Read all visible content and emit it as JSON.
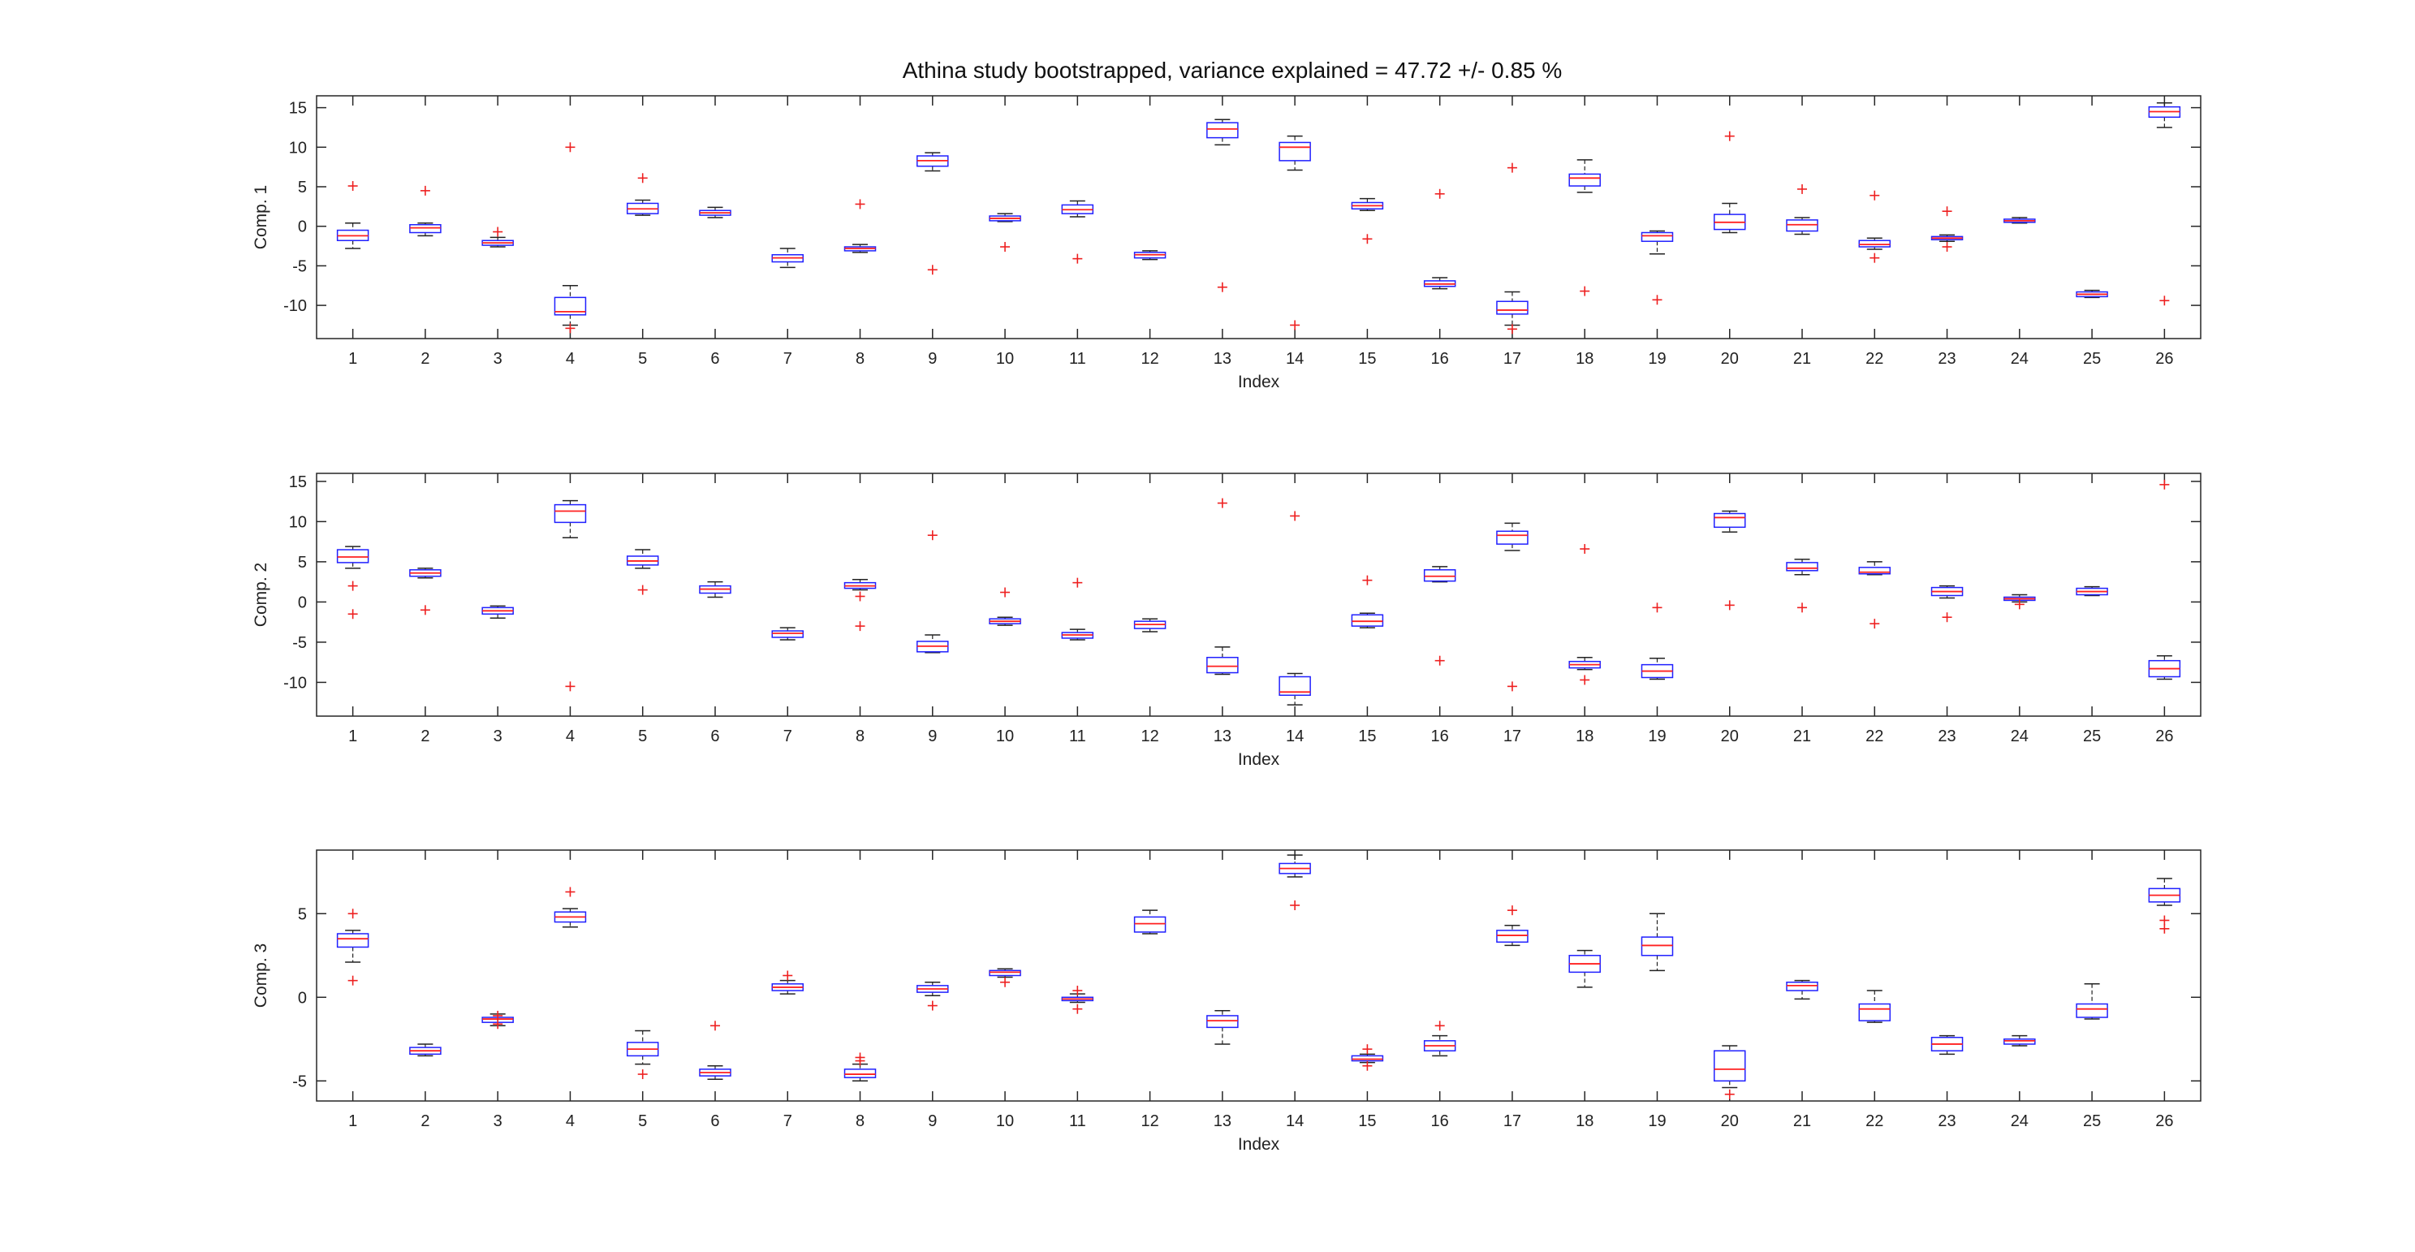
{
  "figure": {
    "title": "Athina study bootstrapped, variance explained = 47.72 +/- 0.85 %",
    "colors": {
      "box": "#2020ff",
      "median": "#ff2020",
      "outlier": "#ee2020",
      "whisker": "#222222",
      "axis": "#262626"
    }
  },
  "chart_data": [
    {
      "type": "box",
      "ylabel": "Comp. 1",
      "xlabel": "Index",
      "ylim": [
        -14.2,
        16.5
      ],
      "yticks": [
        -10,
        -5,
        0,
        5,
        10,
        15
      ],
      "categories": [
        "1",
        "2",
        "3",
        "4",
        "5",
        "6",
        "7",
        "8",
        "9",
        "10",
        "11",
        "12",
        "13",
        "14",
        "15",
        "16",
        "17",
        "18",
        "19",
        "20",
        "21",
        "22",
        "23",
        "24",
        "25",
        "26"
      ],
      "boxes": [
        {
          "lw": -2.8,
          "q1": -1.8,
          "med": -1.2,
          "q3": -0.5,
          "uw": 0.4,
          "outliers": [
            5.1
          ]
        },
        {
          "lw": -1.2,
          "q1": -0.8,
          "med": -0.2,
          "q3": 0.2,
          "uw": 0.4,
          "outliers": [
            4.5
          ]
        },
        {
          "lw": -2.6,
          "q1": -2.4,
          "med": -2.1,
          "q3": -1.8,
          "uw": -1.4,
          "outliers": [
            -0.7
          ]
        },
        {
          "lw": -12.5,
          "q1": -11.2,
          "med": -10.8,
          "q3": -9.0,
          "uw": -7.5,
          "outliers": [
            10.0,
            -12.9
          ]
        },
        {
          "lw": 1.4,
          "q1": 1.6,
          "med": 2.2,
          "q3": 2.9,
          "uw": 3.3,
          "outliers": [
            6.1
          ]
        },
        {
          "lw": 1.1,
          "q1": 1.4,
          "med": 1.7,
          "q3": 2.0,
          "uw": 2.4,
          "outliers": []
        },
        {
          "lw": -5.2,
          "q1": -4.5,
          "med": -4.0,
          "q3": -3.6,
          "uw": -2.8,
          "outliers": []
        },
        {
          "lw": -3.3,
          "q1": -3.1,
          "med": -2.8,
          "q3": -2.6,
          "uw": -2.3,
          "outliers": [
            2.8
          ]
        },
        {
          "lw": 7.0,
          "q1": 7.6,
          "med": 8.3,
          "q3": 8.9,
          "uw": 9.3,
          "outliers": [
            -5.5
          ]
        },
        {
          "lw": 0.6,
          "q1": 0.7,
          "med": 1.0,
          "q3": 1.3,
          "uw": 1.6,
          "outliers": [
            -2.6
          ]
        },
        {
          "lw": 1.2,
          "q1": 1.6,
          "med": 2.1,
          "q3": 2.7,
          "uw": 3.2,
          "outliers": [
            -4.1
          ]
        },
        {
          "lw": -4.2,
          "q1": -4.0,
          "med": -3.6,
          "q3": -3.3,
          "uw": -3.1,
          "outliers": []
        },
        {
          "lw": 10.3,
          "q1": 11.2,
          "med": 12.3,
          "q3": 13.1,
          "uw": 13.5,
          "outliers": [
            -7.7
          ]
        },
        {
          "lw": 7.1,
          "q1": 8.3,
          "med": 10.0,
          "q3": 10.6,
          "uw": 11.4,
          "outliers": [
            -12.5
          ]
        },
        {
          "lw": 2.0,
          "q1": 2.2,
          "med": 2.6,
          "q3": 3.0,
          "uw": 3.5,
          "outliers": [
            -1.6
          ]
        },
        {
          "lw": -7.9,
          "q1": -7.6,
          "med": -7.3,
          "q3": -6.9,
          "uw": -6.5,
          "outliers": [
            4.1
          ]
        },
        {
          "lw": -12.5,
          "q1": -11.1,
          "med": -10.6,
          "q3": -9.5,
          "uw": -8.3,
          "outliers": [
            7.4,
            -13.0
          ]
        },
        {
          "lw": 4.3,
          "q1": 5.1,
          "med": 6.1,
          "q3": 6.6,
          "uw": 8.4,
          "outliers": [
            -8.2
          ]
        },
        {
          "lw": -3.5,
          "q1": -1.9,
          "med": -1.2,
          "q3": -0.8,
          "uw": -0.6,
          "outliers": [
            -9.3
          ]
        },
        {
          "lw": -0.8,
          "q1": -0.4,
          "med": 0.5,
          "q3": 1.5,
          "uw": 2.9,
          "outliers": [
            11.4
          ]
        },
        {
          "lw": -1.0,
          "q1": -0.6,
          "med": 0.2,
          "q3": 0.8,
          "uw": 1.1,
          "outliers": [
            4.7
          ]
        },
        {
          "lw": -2.9,
          "q1": -2.6,
          "med": -2.3,
          "q3": -1.8,
          "uw": -1.5,
          "outliers": [
            3.9,
            -4.0
          ]
        },
        {
          "lw": -1.9,
          "q1": -1.7,
          "med": -1.5,
          "q3": -1.3,
          "uw": -1.1,
          "outliers": [
            1.9,
            -2.6
          ]
        },
        {
          "lw": 0.4,
          "q1": 0.5,
          "med": 0.7,
          "q3": 0.9,
          "uw": 1.1,
          "outliers": []
        },
        {
          "lw": -9.0,
          "q1": -8.9,
          "med": -8.6,
          "q3": -8.3,
          "uw": -8.1,
          "outliers": []
        },
        {
          "lw": 12.5,
          "q1": 13.8,
          "med": 14.5,
          "q3": 15.1,
          "uw": 15.6,
          "outliers": [
            -9.4
          ]
        }
      ]
    },
    {
      "type": "box",
      "ylabel": "Comp. 2",
      "xlabel": "Index",
      "ylim": [
        -14.2,
        16.0
      ],
      "yticks": [
        -10,
        -5,
        0,
        5,
        10,
        15
      ],
      "categories": [
        "1",
        "2",
        "3",
        "4",
        "5",
        "6",
        "7",
        "8",
        "9",
        "10",
        "11",
        "12",
        "13",
        "14",
        "15",
        "16",
        "17",
        "18",
        "19",
        "20",
        "21",
        "22",
        "23",
        "24",
        "25",
        "26"
      ],
      "boxes": [
        {
          "lw": 4.2,
          "q1": 4.9,
          "med": 5.6,
          "q3": 6.5,
          "uw": 6.9,
          "outliers": [
            2.0,
            -1.5
          ]
        },
        {
          "lw": 3.0,
          "q1": 3.2,
          "med": 3.6,
          "q3": 4.0,
          "uw": 4.2,
          "outliers": [
            -1.0
          ]
        },
        {
          "lw": -2.0,
          "q1": -1.5,
          "med": -1.1,
          "q3": -0.7,
          "uw": -0.5,
          "outliers": []
        },
        {
          "lw": 8.0,
          "q1": 9.9,
          "med": 11.3,
          "q3": 12.1,
          "uw": 12.6,
          "outliers": [
            -10.5
          ]
        },
        {
          "lw": 4.2,
          "q1": 4.6,
          "med": 5.1,
          "q3": 5.7,
          "uw": 6.5,
          "outliers": [
            1.5
          ]
        },
        {
          "lw": 0.6,
          "q1": 1.1,
          "med": 1.6,
          "q3": 2.0,
          "uw": 2.5,
          "outliers": []
        },
        {
          "lw": -4.7,
          "q1": -4.4,
          "med": -3.9,
          "q3": -3.6,
          "uw": -3.2,
          "outliers": []
        },
        {
          "lw": 1.5,
          "q1": 1.7,
          "med": 2.0,
          "q3": 2.4,
          "uw": 2.8,
          "outliers": [
            0.7,
            -3.0
          ]
        },
        {
          "lw": -6.3,
          "q1": -6.2,
          "med": -5.5,
          "q3": -4.9,
          "uw": -4.1,
          "outliers": [
            8.3
          ]
        },
        {
          "lw": -2.9,
          "q1": -2.7,
          "med": -2.4,
          "q3": -2.1,
          "uw": -1.9,
          "outliers": [
            1.2
          ]
        },
        {
          "lw": -4.7,
          "q1": -4.5,
          "med": -4.1,
          "q3": -3.8,
          "uw": -3.4,
          "outliers": [
            2.4
          ]
        },
        {
          "lw": -3.7,
          "q1": -3.3,
          "med": -2.8,
          "q3": -2.4,
          "uw": -2.1,
          "outliers": []
        },
        {
          "lw": -9.0,
          "q1": -8.8,
          "med": -8.0,
          "q3": -6.9,
          "uw": -5.6,
          "outliers": [
            12.3
          ]
        },
        {
          "lw": -12.8,
          "q1": -11.6,
          "med": -11.2,
          "q3": -9.3,
          "uw": -8.9,
          "outliers": [
            10.7
          ]
        },
        {
          "lw": -3.2,
          "q1": -3.0,
          "med": -2.4,
          "q3": -1.6,
          "uw": -1.4,
          "outliers": [
            2.7
          ]
        },
        {
          "lw": 2.5,
          "q1": 2.6,
          "med": 3.2,
          "q3": 4.0,
          "uw": 4.4,
          "outliers": [
            -7.3
          ]
        },
        {
          "lw": 6.4,
          "q1": 7.2,
          "med": 8.3,
          "q3": 8.8,
          "uw": 9.8,
          "outliers": [
            -10.5
          ]
        },
        {
          "lw": -8.4,
          "q1": -8.2,
          "med": -7.8,
          "q3": -7.4,
          "uw": -6.9,
          "outliers": [
            6.6,
            -9.7
          ]
        },
        {
          "lw": -9.6,
          "q1": -9.4,
          "med": -8.6,
          "q3": -7.8,
          "uw": -7.0,
          "outliers": [
            -0.7
          ]
        },
        {
          "lw": 8.7,
          "q1": 9.3,
          "med": 10.5,
          "q3": 11.0,
          "uw": 11.3,
          "outliers": [
            -0.4
          ]
        },
        {
          "lw": 3.4,
          "q1": 3.9,
          "med": 4.2,
          "q3": 4.9,
          "uw": 5.3,
          "outliers": [
            -0.7
          ]
        },
        {
          "lw": 3.4,
          "q1": 3.5,
          "med": 3.7,
          "q3": 4.3,
          "uw": 5.0,
          "outliers": [
            -2.7
          ]
        },
        {
          "lw": 0.5,
          "q1": 0.8,
          "med": 1.3,
          "q3": 1.8,
          "uw": 2.0,
          "outliers": [
            -1.9
          ]
        },
        {
          "lw": 0.0,
          "q1": 0.2,
          "med": 0.4,
          "q3": 0.6,
          "uw": 0.9,
          "outliers": [
            -0.3
          ]
        },
        {
          "lw": 0.8,
          "q1": 0.9,
          "med": 1.3,
          "q3": 1.7,
          "uw": 1.9,
          "outliers": []
        },
        {
          "lw": -9.6,
          "q1": -9.3,
          "med": -8.3,
          "q3": -7.3,
          "uw": -6.7,
          "outliers": [
            14.6
          ]
        }
      ]
    },
    {
      "type": "box",
      "ylabel": "Comp. 3",
      "xlabel": "Index",
      "ylim": [
        -6.2,
        8.8
      ],
      "yticks": [
        -5,
        0,
        5
      ],
      "categories": [
        "1",
        "2",
        "3",
        "4",
        "5",
        "6",
        "7",
        "8",
        "9",
        "10",
        "11",
        "12",
        "13",
        "14",
        "15",
        "16",
        "17",
        "18",
        "19",
        "20",
        "21",
        "22",
        "23",
        "24",
        "25",
        "26"
      ],
      "boxes": [
        {
          "lw": 2.1,
          "q1": 3.0,
          "med": 3.5,
          "q3": 3.8,
          "uw": 4.0,
          "outliers": [
            5.0,
            1.0
          ]
        },
        {
          "lw": -3.5,
          "q1": -3.4,
          "med": -3.2,
          "q3": -3.0,
          "uw": -2.8,
          "outliers": []
        },
        {
          "lw": -1.7,
          "q1": -1.5,
          "med": -1.3,
          "q3": -1.2,
          "uw": -1.0,
          "outliers": [
            -1.1,
            -1.6
          ]
        },
        {
          "lw": 4.2,
          "q1": 4.5,
          "med": 4.8,
          "q3": 5.1,
          "uw": 5.3,
          "outliers": [
            6.3
          ]
        },
        {
          "lw": -4.0,
          "q1": -3.5,
          "med": -3.1,
          "q3": -2.7,
          "uw": -2.0,
          "outliers": [
            -4.6
          ]
        },
        {
          "lw": -4.9,
          "q1": -4.7,
          "med": -4.5,
          "q3": -4.3,
          "uw": -4.1,
          "outliers": [
            -1.7
          ]
        },
        {
          "lw": 0.2,
          "q1": 0.4,
          "med": 0.6,
          "q3": 0.8,
          "uw": 1.0,
          "outliers": [
            1.3
          ]
        },
        {
          "lw": -5.0,
          "q1": -4.8,
          "med": -4.6,
          "q3": -4.3,
          "uw": -4.0,
          "outliers": [
            -3.6,
            -3.8
          ]
        },
        {
          "lw": 0.1,
          "q1": 0.3,
          "med": 0.5,
          "q3": 0.7,
          "uw": 0.9,
          "outliers": [
            -0.5
          ]
        },
        {
          "lw": 1.2,
          "q1": 1.3,
          "med": 1.5,
          "q3": 1.6,
          "uw": 1.7,
          "outliers": [
            0.9
          ]
        },
        {
          "lw": -0.3,
          "q1": -0.2,
          "med": -0.1,
          "q3": 0.0,
          "uw": 0.2,
          "outliers": [
            0.4,
            -0.7
          ]
        },
        {
          "lw": 3.8,
          "q1": 3.9,
          "med": 4.4,
          "q3": 4.8,
          "uw": 5.2,
          "outliers": []
        },
        {
          "lw": -2.8,
          "q1": -1.8,
          "med": -1.4,
          "q3": -1.1,
          "uw": -0.8,
          "outliers": []
        },
        {
          "lw": 7.2,
          "q1": 7.4,
          "med": 7.7,
          "q3": 8.0,
          "uw": 8.5,
          "outliers": [
            5.5
          ]
        },
        {
          "lw": -3.9,
          "q1": -3.8,
          "med": -3.7,
          "q3": -3.5,
          "uw": -3.4,
          "outliers": [
            -3.1,
            -4.1
          ]
        },
        {
          "lw": -3.5,
          "q1": -3.2,
          "med": -2.9,
          "q3": -2.6,
          "uw": -2.3,
          "outliers": [
            -1.7
          ]
        },
        {
          "lw": 3.1,
          "q1": 3.3,
          "med": 3.7,
          "q3": 4.0,
          "uw": 4.3,
          "outliers": [
            5.2
          ]
        },
        {
          "lw": 0.6,
          "q1": 1.5,
          "med": 2.0,
          "q3": 2.5,
          "uw": 2.8,
          "outliers": []
        },
        {
          "lw": 1.6,
          "q1": 2.5,
          "med": 3.1,
          "q3": 3.6,
          "uw": 5.0,
          "outliers": []
        },
        {
          "lw": -5.4,
          "q1": -5.0,
          "med": -4.3,
          "q3": -3.2,
          "uw": -2.9,
          "outliers": [
            -5.8
          ]
        },
        {
          "lw": -0.1,
          "q1": 0.4,
          "med": 0.7,
          "q3": 0.9,
          "uw": 1.0,
          "outliers": []
        },
        {
          "lw": -1.5,
          "q1": -1.4,
          "med": -0.7,
          "q3": -0.4,
          "uw": 0.4,
          "outliers": []
        },
        {
          "lw": -3.4,
          "q1": -3.2,
          "med": -2.8,
          "q3": -2.4,
          "uw": -2.3,
          "outliers": []
        },
        {
          "lw": -2.9,
          "q1": -2.8,
          "med": -2.6,
          "q3": -2.5,
          "uw": -2.3,
          "outliers": []
        },
        {
          "lw": -1.3,
          "q1": -1.2,
          "med": -0.7,
          "q3": -0.4,
          "uw": 0.8,
          "outliers": []
        },
        {
          "lw": 5.5,
          "q1": 5.7,
          "med": 6.1,
          "q3": 6.5,
          "uw": 7.1,
          "outliers": [
            4.6,
            4.1
          ]
        }
      ]
    }
  ]
}
